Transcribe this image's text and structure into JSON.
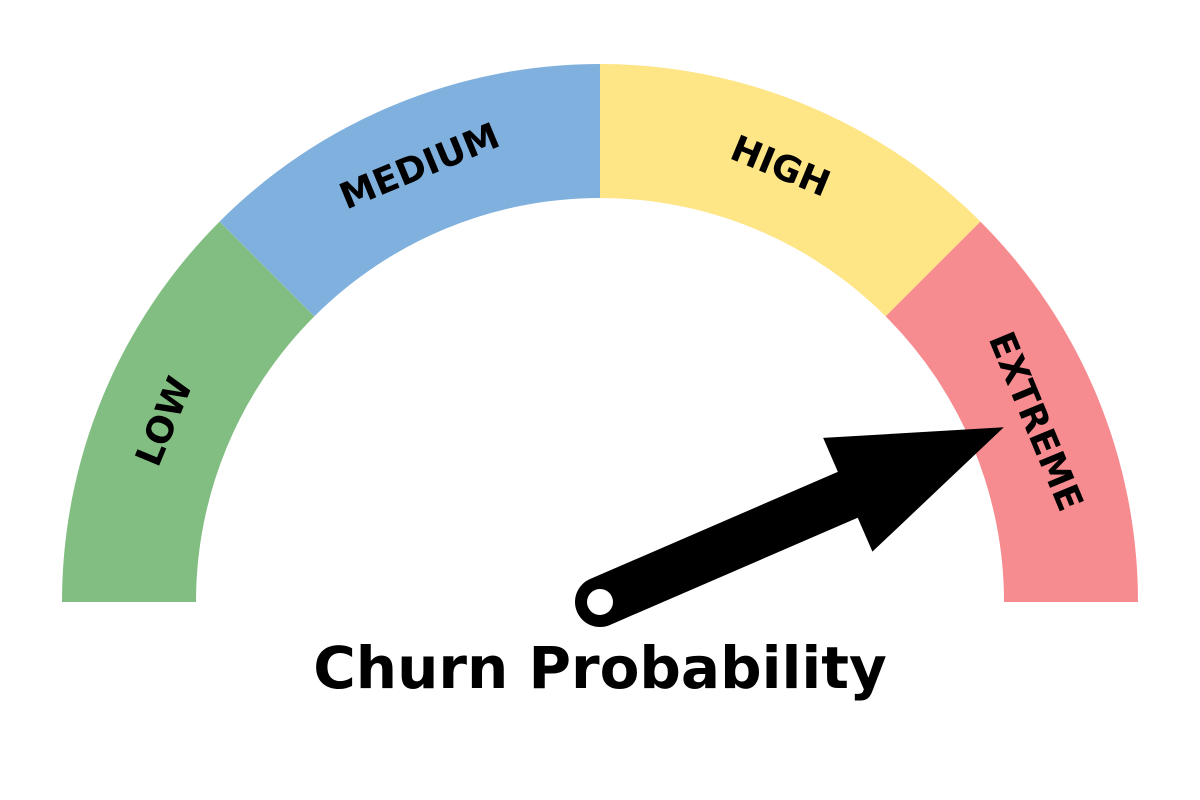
{
  "chart_data": {
    "type": "gauge",
    "title": "Churn Probability",
    "range": [
      0,
      1
    ],
    "value": 0.87,
    "segments": [
      {
        "label": "LOW",
        "from": 0.0,
        "to": 0.25,
        "color": "#82be82"
      },
      {
        "label": "MEDIUM",
        "from": 0.25,
        "to": 0.5,
        "color": "#80b0dd"
      },
      {
        "label": "HIGH",
        "from": 0.5,
        "to": 0.75,
        "color": "#fee585"
      },
      {
        "label": "EXTREME",
        "from": 0.75,
        "to": 1.0,
        "color": "#f68c90"
      }
    ],
    "needle_color": "#000000"
  }
}
